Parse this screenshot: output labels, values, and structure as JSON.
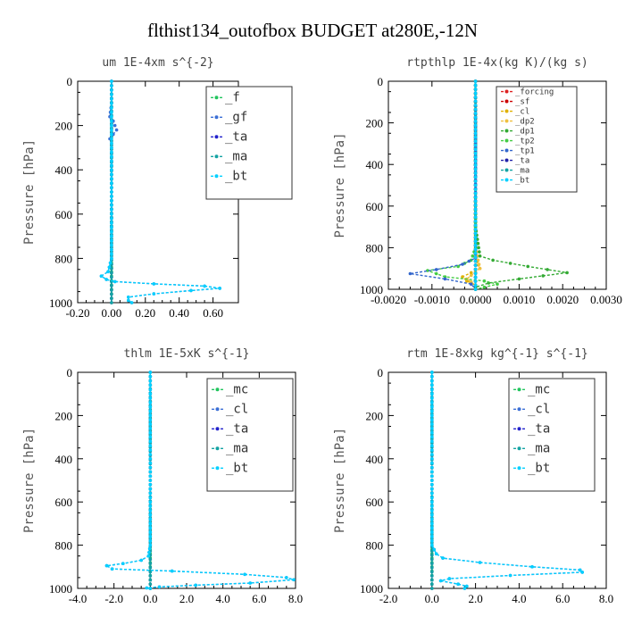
{
  "title": "flthist134_outofbox  BUDGET at280E,-12N",
  "chart_data": [
    {
      "type": "line",
      "title": "um  1E-4xm s^{-2}",
      "ylabel": "Pressure [hPa]",
      "xlim": [
        -0.2,
        0.75
      ],
      "ylim": [
        1000,
        0
      ],
      "xticks": [
        "-0.20",
        "0.00",
        "0.20",
        "0.40",
        "0.60"
      ],
      "xtick_values": [
        -0.2,
        0.0,
        0.2,
        0.4,
        0.6
      ],
      "yticks": [
        "0",
        "200",
        "400",
        "600",
        "800",
        "1000"
      ],
      "ytick_values": [
        0,
        200,
        400,
        600,
        800,
        1000
      ],
      "legend": [
        "_f",
        "_gf",
        "_ta",
        "_ma",
        "_bt"
      ],
      "series": [
        {
          "name": "_f",
          "color": "#22c55e",
          "x": [
            0,
            0,
            0,
            0,
            0,
            0,
            0,
            0,
            0,
            0,
            0
          ],
          "y": [
            0,
            100,
            200,
            300,
            400,
            500,
            600,
            700,
            800,
            900,
            1000
          ]
        },
        {
          "name": "_gf",
          "color": "#3b6fd6",
          "x": [
            0,
            0,
            -0.01,
            0.01,
            0.03,
            0.01,
            -0.01,
            0,
            0,
            0,
            -0.02,
            -0.06,
            -0.03,
            0.02,
            0.25,
            0.55,
            0.64,
            0.47,
            0.25,
            0.1,
            0.1,
            0.12
          ],
          "y": [
            0,
            100,
            160,
            180,
            220,
            240,
            260,
            280,
            300,
            800,
            860,
            880,
            895,
            905,
            915,
            925,
            935,
            945,
            960,
            975,
            990,
            1000
          ]
        },
        {
          "name": "_ta",
          "color": "#2222cc",
          "x": [
            0,
            0,
            0,
            0,
            0
          ],
          "y": [
            0,
            250,
            500,
            750,
            1000
          ]
        },
        {
          "name": "_ma",
          "color": "#14a3a3",
          "x": [
            0,
            0,
            0,
            0,
            0
          ],
          "y": [
            0,
            250,
            500,
            750,
            1000
          ]
        },
        {
          "name": "_bt",
          "color": "#00d0ff",
          "x": [
            0,
            0,
            0,
            0,
            -0.02,
            -0.06,
            -0.03,
            0.02,
            0.25,
            0.55,
            0.64,
            0.47,
            0.25,
            0.1,
            0.1,
            0.12
          ],
          "y": [
            0,
            300,
            600,
            800,
            860,
            880,
            895,
            905,
            915,
            925,
            935,
            945,
            960,
            975,
            990,
            1000
          ]
        }
      ]
    },
    {
      "type": "line",
      "title": "rtpthlp  1E-4x(kg K)/(kg s)",
      "ylabel": "Pressure [hPa]",
      "xlim": [
        -0.002,
        0.003
      ],
      "ylim": [
        1000,
        0
      ],
      "xticks": [
        "-0.0020",
        "-0.0010",
        "0.0000",
        "0.0010",
        "0.0020",
        "0.0030"
      ],
      "xtick_values": [
        -0.002,
        -0.001,
        0.0,
        0.001,
        0.002,
        0.003
      ],
      "yticks": [
        "0",
        "200",
        "400",
        "600",
        "800",
        "1000"
      ],
      "ytick_values": [
        0,
        200,
        400,
        600,
        800,
        1000
      ],
      "legend": [
        "_forcing",
        "_sf",
        "_cl",
        "_dp2",
        "_dp1",
        "_tp2",
        "_tp1",
        "_ta",
        "_ma",
        "_bt"
      ],
      "series": [
        {
          "name": "_forcing",
          "color": "#dd2222",
          "x": [
            0,
            0,
            0,
            0,
            0
          ],
          "y": [
            0,
            250,
            500,
            750,
            1000
          ]
        },
        {
          "name": "_sf",
          "color": "#cc0000",
          "x": [
            0,
            0,
            0,
            0,
            0
          ],
          "y": [
            0,
            250,
            500,
            750,
            1000
          ]
        },
        {
          "name": "_cl",
          "color": "#e0b000",
          "x": [
            0,
            0,
            0,
            0.0001,
            -0.0003,
            -0.0002,
            0,
            0
          ],
          "y": [
            0,
            600,
            850,
            900,
            940,
            960,
            980,
            1000
          ]
        },
        {
          "name": "_dp2",
          "color": "#f0c040",
          "x": [
            0,
            0,
            0.0001,
            -0.0002,
            0,
            0
          ],
          "y": [
            0,
            800,
            900,
            950,
            980,
            1000
          ]
        },
        {
          "name": "_dp1",
          "color": "#33aa33",
          "x": [
            0,
            0,
            0.0001,
            0.0004,
            0.0012,
            0.0021,
            0.001,
            0.0003,
            0,
            0
          ],
          "y": [
            0,
            700,
            840,
            860,
            890,
            920,
            950,
            970,
            990,
            1000
          ]
        },
        {
          "name": "_tp2",
          "color": "#44cc44",
          "x": [
            0,
            0,
            -0.0001,
            -0.0004,
            -0.0011,
            -0.0007,
            0.0002,
            0.0005,
            0.0002,
            0
          ],
          "y": [
            0,
            800,
            860,
            890,
            910,
            940,
            960,
            975,
            990,
            1000
          ]
        },
        {
          "name": "_tp1",
          "color": "#3366cc",
          "x": [
            0,
            0,
            -0.0003,
            -0.0009,
            -0.0015,
            -0.0007,
            -0.0001,
            0
          ],
          "y": [
            0,
            850,
            880,
            905,
            925,
            950,
            975,
            1000
          ]
        },
        {
          "name": "_ta",
          "color": "#2222aa",
          "x": [
            0,
            0,
            0,
            0,
            0
          ],
          "y": [
            0,
            250,
            500,
            750,
            1000
          ]
        },
        {
          "name": "_ma",
          "color": "#14a3a3",
          "x": [
            0,
            0,
            0,
            0,
            0
          ],
          "y": [
            0,
            250,
            500,
            750,
            1000
          ]
        },
        {
          "name": "_bt",
          "color": "#00d0ff",
          "x": [
            0,
            0,
            0,
            0,
            0
          ],
          "y": [
            0,
            250,
            500,
            750,
            1000
          ]
        }
      ]
    },
    {
      "type": "line",
      "title": "thlm  1E-5xK s^{-1}",
      "ylabel": "Pressure [hPa]",
      "xlim": [
        -4.0,
        8.0
      ],
      "ylim": [
        1000,
        0
      ],
      "xticks": [
        "-4.0",
        "-2.0",
        "0.0",
        "2.0",
        "4.0",
        "6.0",
        "8.0"
      ],
      "xtick_values": [
        -4,
        -2,
        0,
        2,
        4,
        6,
        8
      ],
      "yticks": [
        "0",
        "200",
        "400",
        "600",
        "800",
        "1000"
      ],
      "ytick_values": [
        0,
        200,
        400,
        600,
        800,
        1000
      ],
      "legend": [
        "_mc",
        "_cl",
        "_ta",
        "_ma",
        "_bt"
      ],
      "series": [
        {
          "name": "_mc",
          "color": "#22c55e",
          "x": [
            0,
            0,
            0,
            0,
            0,
            0,
            0,
            0,
            0,
            0,
            0
          ],
          "y": [
            0,
            100,
            200,
            300,
            400,
            500,
            600,
            700,
            800,
            900,
            1000
          ]
        },
        {
          "name": "_cl",
          "color": "#3b6fd6",
          "x": [
            0,
            0,
            -0.1,
            -0.5,
            -1.5,
            -2.4,
            -2.1,
            1.2,
            5.2,
            7.5,
            7.9,
            5.5,
            2.5,
            0.5,
            -0.2,
            0
          ],
          "y": [
            0,
            800,
            850,
            870,
            885,
            895,
            910,
            920,
            935,
            950,
            960,
            975,
            985,
            993,
            998,
            1000
          ]
        },
        {
          "name": "_ta",
          "color": "#2222cc",
          "x": [
            0,
            0,
            0,
            0,
            0
          ],
          "y": [
            0,
            250,
            500,
            750,
            1000
          ]
        },
        {
          "name": "_ma",
          "color": "#14a3a3",
          "x": [
            0,
            0,
            0,
            0,
            0
          ],
          "y": [
            0,
            250,
            500,
            750,
            1000
          ]
        },
        {
          "name": "_bt",
          "color": "#00d0ff",
          "x": [
            0,
            0,
            -0.1,
            -0.5,
            -1.5,
            -2.4,
            -2.1,
            1.2,
            5.2,
            7.5,
            7.9,
            5.5,
            2.5,
            0.5,
            -0.2,
            0
          ],
          "y": [
            0,
            800,
            850,
            870,
            885,
            895,
            910,
            920,
            935,
            950,
            960,
            975,
            985,
            993,
            998,
            1000
          ]
        }
      ]
    },
    {
      "type": "line",
      "title": "rtm  1E-8xkg kg^{-1} s^{-1}",
      "ylabel": "Pressure [hPa]",
      "xlim": [
        -2.0,
        8.0
      ],
      "ylim": [
        1000,
        0
      ],
      "xticks": [
        "-2.0",
        "0.0",
        "2.0",
        "4.0",
        "6.0",
        "8.0"
      ],
      "xtick_values": [
        -2,
        0,
        2,
        4,
        6,
        8
      ],
      "yticks": [
        "0",
        "200",
        "400",
        "600",
        "800",
        "1000"
      ],
      "ytick_values": [
        0,
        200,
        400,
        600,
        800,
        1000
      ],
      "legend": [
        "_mc",
        "_cl",
        "_ta",
        "_ma",
        "_bt"
      ],
      "series": [
        {
          "name": "_mc",
          "color": "#22c55e",
          "x": [
            0,
            0,
            0,
            0,
            0,
            0,
            0,
            0,
            0,
            0,
            0
          ],
          "y": [
            0,
            100,
            200,
            300,
            400,
            500,
            600,
            700,
            800,
            900,
            1000
          ]
        },
        {
          "name": "_cl",
          "color": "#3b6fd6",
          "x": [
            0,
            0,
            0.2,
            0.5,
            2.2,
            4.6,
            6.8,
            6.9,
            3.6,
            0.8,
            0.4,
            1.2,
            1.6,
            1.5
          ],
          "y": [
            0,
            800,
            840,
            860,
            880,
            900,
            915,
            925,
            940,
            955,
            965,
            980,
            990,
            1000
          ]
        },
        {
          "name": "_ta",
          "color": "#2222cc",
          "x": [
            0,
            0,
            0,
            0,
            0
          ],
          "y": [
            0,
            250,
            500,
            750,
            1000
          ]
        },
        {
          "name": "_ma",
          "color": "#14a3a3",
          "x": [
            0,
            0,
            0,
            0,
            0
          ],
          "y": [
            0,
            250,
            500,
            750,
            1000
          ]
        },
        {
          "name": "_bt",
          "color": "#00d0ff",
          "x": [
            0,
            0,
            0.2,
            0.5,
            2.2,
            4.6,
            6.8,
            6.9,
            3.6,
            0.8,
            0.4,
            1.2,
            1.6,
            1.5
          ],
          "y": [
            0,
            800,
            840,
            860,
            880,
            900,
            915,
            925,
            940,
            955,
            965,
            980,
            990,
            1000
          ]
        }
      ]
    }
  ]
}
